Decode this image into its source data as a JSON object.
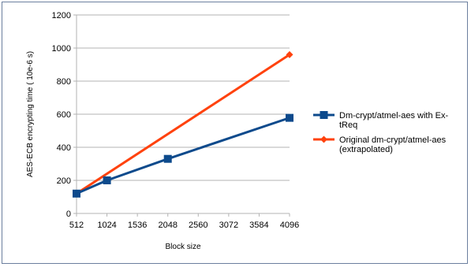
{
  "chart_data": {
    "type": "line",
    "x": [
      512,
      1024,
      2048,
      4096
    ],
    "xlabel": "Block size",
    "ylabel": "AES-ECB encrypting time ( 10e-6 s)",
    "xlim": [
      512,
      4096
    ],
    "ylim": [
      0,
      1200
    ],
    "xticks": [
      512,
      1024,
      1536,
      2048,
      2560,
      3072,
      3584,
      4096
    ],
    "yticks": [
      0,
      200,
      400,
      600,
      800,
      1000,
      1200
    ],
    "grid": "horizontal",
    "legend_position": "right",
    "series": [
      {
        "name_lines": [
          "Dm-crypt/atmel-aes with Ex-",
          "tReq"
        ],
        "x": [
          512,
          1024,
          2048,
          4096
        ],
        "values": [
          120,
          200,
          330,
          578
        ],
        "color": "#0d4a8c",
        "marker": "square"
      },
      {
        "name_lines": [
          "Original dm-crypt/atmel-aes",
          "(extrapolated)"
        ],
        "x": [
          512,
          4096
        ],
        "values": [
          120,
          960
        ],
        "color": "#ff420e",
        "marker": "diamond"
      }
    ]
  }
}
